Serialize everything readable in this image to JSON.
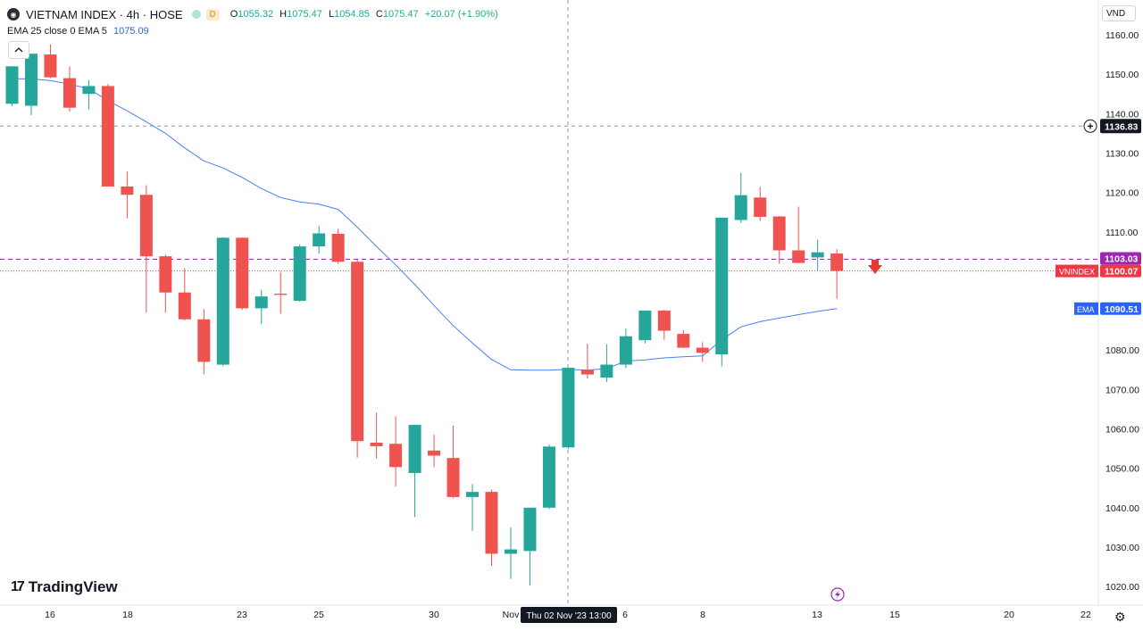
{
  "legend": {
    "symbol": "VIETNAM INDEX · 4h · HOSE",
    "badge": "D",
    "open_label": "O",
    "open": "1055.32",
    "high_label": "H",
    "high": "1075.47",
    "low_label": "L",
    "low": "1054.85",
    "close_label": "C",
    "close": "1075.47",
    "change": "+20.07 (+1.90%)",
    "indicator": "EMA 25 close 0 EMA 5",
    "indicator_value": "1075.09"
  },
  "currency": "VND",
  "logo": "TradingView",
  "colors": {
    "up": "#26a69a",
    "down": "#ef5350",
    "ema": "#4a7ef5",
    "purple": "#9c27b0",
    "red_line": "#f23645"
  },
  "price_axis": {
    "labels": [
      "1160.00",
      "1150.00",
      "1140.00",
      "1130.00",
      "1120.00",
      "1110.00",
      "1100.00",
      "1090.00",
      "1080.00",
      "1070.00",
      "1060.00",
      "1050.00",
      "1040.00",
      "1030.00",
      "1020.00"
    ],
    "crosshair_price": "1136.83",
    "level_price": "1103.03",
    "last_symbol": "VNINDEX",
    "last_price": "1100.07",
    "ema_label": "EMA",
    "ema_price": "1090.51"
  },
  "time_axis": {
    "labels": [
      "16",
      "18",
      "23",
      "25",
      "30",
      "Nov",
      "6",
      "8",
      "13",
      "15",
      "20",
      "22"
    ],
    "crosshair_label": "Thu 02 Nov '23",
    "crosshair_time": "13:00"
  },
  "chart_data": {
    "type": "candlestick",
    "timeframe": "4h",
    "ylim": [
      1016,
      1166
    ],
    "candles": [
      {
        "o": 1142.5,
        "h": 1151.9,
        "l": 1142.0,
        "c": 1152.0
      },
      {
        "o": 1142.0,
        "h": 1155.0,
        "l": 1139.6,
        "c": 1155.2
      },
      {
        "o": 1155.0,
        "h": 1157.6,
        "l": 1149.0,
        "c": 1149.2
      },
      {
        "o": 1149.0,
        "h": 1152.0,
        "l": 1140.5,
        "c": 1141.5
      },
      {
        "o": 1145.0,
        "h": 1148.5,
        "l": 1141.0,
        "c": 1147.0
      },
      {
        "o": 1147.0,
        "h": 1147.5,
        "l": 1121.5,
        "c": 1121.5
      },
      {
        "o": 1121.5,
        "h": 1125.3,
        "l": 1113.4,
        "c": 1119.4
      },
      {
        "o": 1119.4,
        "h": 1121.8,
        "l": 1089.5,
        "c": 1103.8
      },
      {
        "o": 1103.8,
        "h": 1104.2,
        "l": 1089.5,
        "c": 1094.6
      },
      {
        "o": 1094.6,
        "h": 1100.8,
        "l": 1087.5,
        "c": 1087.8
      },
      {
        "o": 1087.8,
        "h": 1090.4,
        "l": 1073.9,
        "c": 1077.0
      },
      {
        "o": 1076.3,
        "h": 1108.6,
        "l": 1075.9,
        "c": 1108.5
      },
      {
        "o": 1108.5,
        "h": 1108.6,
        "l": 1090.2,
        "c": 1090.6
      },
      {
        "o": 1090.6,
        "h": 1095.3,
        "l": 1086.6,
        "c": 1093.6
      },
      {
        "o": 1094.3,
        "h": 1099.8,
        "l": 1089.2,
        "c": 1094.0
      },
      {
        "o": 1092.5,
        "h": 1106.8,
        "l": 1092.3,
        "c": 1106.3
      },
      {
        "o": 1106.3,
        "h": 1111.5,
        "l": 1104.4,
        "c": 1109.6
      },
      {
        "o": 1109.5,
        "h": 1110.8,
        "l": 1101.9,
        "c": 1102.4
      },
      {
        "o": 1102.4,
        "h": 1102.9,
        "l": 1052.7,
        "c": 1056.9
      },
      {
        "o": 1056.5,
        "h": 1064.1,
        "l": 1052.4,
        "c": 1055.6
      },
      {
        "o": 1056.2,
        "h": 1063.2,
        "l": 1045.4,
        "c": 1050.3
      },
      {
        "o": 1048.8,
        "h": 1061.0,
        "l": 1037.6,
        "c": 1061.0
      },
      {
        "o": 1054.5,
        "h": 1058.5,
        "l": 1050.3,
        "c": 1053.2
      },
      {
        "o": 1052.6,
        "h": 1060.8,
        "l": 1042.4,
        "c": 1042.7
      },
      {
        "o": 1042.7,
        "h": 1046.0,
        "l": 1034.1,
        "c": 1044.0
      },
      {
        "o": 1044.0,
        "h": 1044.6,
        "l": 1025.2,
        "c": 1028.3
      },
      {
        "o": 1028.3,
        "h": 1035.0,
        "l": 1021.9,
        "c": 1029.4
      },
      {
        "o": 1029.0,
        "h": 1040.0,
        "l": 1020.3,
        "c": 1040.0
      },
      {
        "o": 1040.0,
        "h": 1056.0,
        "l": 1039.6,
        "c": 1055.5
      },
      {
        "o": 1055.3,
        "h": 1075.5,
        "l": 1054.9,
        "c": 1075.5
      },
      {
        "o": 1075.0,
        "h": 1081.6,
        "l": 1072.8,
        "c": 1073.8
      },
      {
        "o": 1073.0,
        "h": 1081.5,
        "l": 1071.9,
        "c": 1076.3
      },
      {
        "o": 1076.3,
        "h": 1085.4,
        "l": 1075.4,
        "c": 1083.5
      },
      {
        "o": 1082.5,
        "h": 1088.8,
        "l": 1081.7,
        "c": 1090.0
      },
      {
        "o": 1090.0,
        "h": 1090.2,
        "l": 1082.6,
        "c": 1084.9
      },
      {
        "o": 1084.1,
        "h": 1085.0,
        "l": 1080.5,
        "c": 1080.6
      },
      {
        "o": 1080.6,
        "h": 1082.0,
        "l": 1077.0,
        "c": 1079.3
      },
      {
        "o": 1078.9,
        "h": 1113.5,
        "l": 1075.8,
        "c": 1113.6
      },
      {
        "o": 1113.0,
        "h": 1125.0,
        "l": 1112.2,
        "c": 1119.3
      },
      {
        "o": 1118.7,
        "h": 1121.4,
        "l": 1112.8,
        "c": 1113.8
      },
      {
        "o": 1113.9,
        "h": 1114.0,
        "l": 1101.9,
        "c": 1105.3
      },
      {
        "o": 1105.3,
        "h": 1116.4,
        "l": 1102.0,
        "c": 1102.1
      },
      {
        "o": 1103.5,
        "h": 1108.0,
        "l": 1100.0,
        "c": 1104.8
      },
      {
        "o": 1104.5,
        "h": 1105.6,
        "l": 1093.0,
        "c": 1100.1
      }
    ],
    "ema": [
      1148.8,
      1148.8,
      1148.4,
      1147.5,
      1146.3,
      1143.3,
      1140.7,
      1137.9,
      1135.0,
      1131.3,
      1128.0,
      1126.2,
      1123.8,
      1121.0,
      1118.7,
      1117.6,
      1117.0,
      1115.7,
      1111.2,
      1106.3,
      1101.6,
      1096.6,
      1091.3,
      1086.2,
      1081.8,
      1077.6,
      1075.0,
      1074.9,
      1074.9,
      1075.1,
      1074.9,
      1075.3,
      1077.2,
      1077.5,
      1078.0,
      1078.3,
      1078.5,
      1082.6,
      1085.9,
      1087.2,
      1088.1,
      1089.0,
      1089.8,
      1090.5
    ],
    "crosshair_price": 1136.83,
    "level_price": 1103.03,
    "last_price": 1100.07,
    "ema_last": 1090.51
  }
}
